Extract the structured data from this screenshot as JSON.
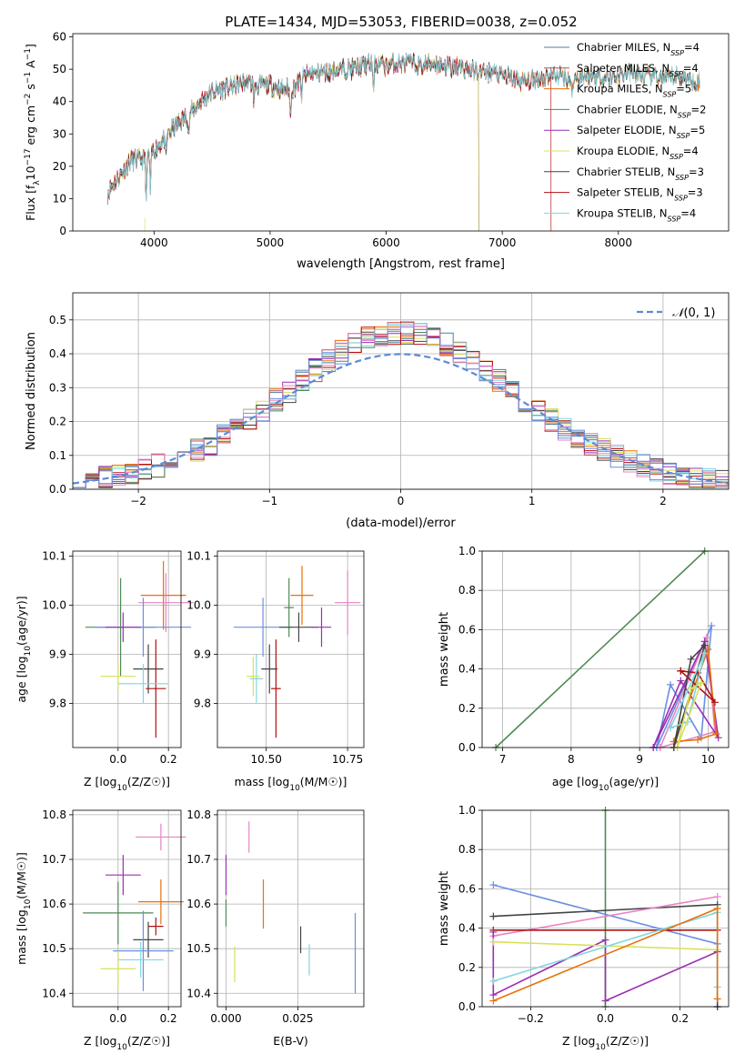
{
  "figure_title": "PLATE=1434, MJD=53053, FIBERID=0038, z=0.052",
  "colors": {
    "chabrier_miles": "#4d7fa3",
    "salpeter_miles": "#c44e52",
    "kroupa_miles": "#e8710a",
    "chabrier_elodie": "#4e8a53",
    "salpeter_elodie": "#9b2fb3",
    "kroupa_elodie": "#d8e05a",
    "chabrier_stelib": "#444444",
    "salpeter_stelib": "#b01010",
    "kroupa_stelib": "#7fd6e0",
    "normal_curve": "#5b8bd6",
    "pink": "#e884c4",
    "blue": "#6a8fe0",
    "grid": "#b0b0b0"
  },
  "chart_data": [
    {
      "id": "spectrum",
      "type": "line",
      "title": "",
      "xlabel": "wavelength [Angstrom, rest frame]",
      "ylabel": "Flux [f_λ10^-17 erg cm^-2 s^-1 A^-1]",
      "xlim": [
        3300,
        8950
      ],
      "ylim": [
        0,
        61
      ],
      "xticks": [
        4000,
        5000,
        6000,
        7000,
        8000
      ],
      "yticks": [
        0,
        10,
        20,
        30,
        40,
        50,
        60
      ],
      "grid": false,
      "legend_position": "upper right",
      "x": [
        3600,
        3700,
        3800,
        3900,
        4000,
        4100,
        4200,
        4300,
        4400,
        4500,
        4600,
        4700,
        4800,
        4900,
        5000,
        5100,
        5200,
        5300,
        5400,
        5500,
        5600,
        5700,
        5800,
        5900,
        6000,
        6100,
        6200,
        6300,
        6400,
        6500,
        6600,
        6700,
        6800,
        6900,
        7000,
        7100,
        7200,
        7300,
        7400,
        7500,
        7600,
        7700,
        7800,
        7900,
        8000,
        8100,
        8200,
        8300,
        8400,
        8500,
        8600,
        8700
      ],
      "base_flux": [
        12,
        17,
        22,
        22,
        25,
        29,
        33,
        36,
        40,
        43,
        44,
        45,
        46,
        45,
        45,
        44,
        44,
        48,
        49,
        49,
        50,
        50,
        51,
        52,
        51,
        52,
        52,
        51,
        52,
        51,
        51,
        50,
        49,
        49,
        48,
        47,
        46,
        47,
        48,
        48,
        47,
        48,
        48,
        47,
        48,
        49,
        48,
        48,
        47,
        48,
        47,
        46
      ],
      "series": [
        {
          "name": "Chabrier MILES, N_SSP=4",
          "color_key": "chabrier_miles",
          "x_end": 8700
        },
        {
          "name": "Salpeter MILES, N_SSP=4",
          "color_key": "salpeter_miles",
          "x_end": 8700
        },
        {
          "name": "Kroupa MILES, N_SSP=5",
          "color_key": "kroupa_miles",
          "x_end": 8700
        },
        {
          "name": "Chabrier ELODIE, N_SSP=2",
          "color_key": "chabrier_elodie",
          "x_end": 6800
        },
        {
          "name": "Salpeter ELODIE, N_SSP=5",
          "color_key": "salpeter_elodie",
          "x_end": 6800
        },
        {
          "name": "Kroupa ELODIE, N_SSP=4",
          "color_key": "kroupa_elodie",
          "x_end": 6800
        },
        {
          "name": "Chabrier STELIB, N_SSP=3",
          "color_key": "chabrier_stelib",
          "x_end": 8700
        },
        {
          "name": "Salpeter STELIB, N_SSP=3",
          "color_key": "salpeter_stelib",
          "x_end": 7420
        },
        {
          "name": "Kroupa STELIB, N_SSP=4",
          "color_key": "kroupa_stelib",
          "x_end": 8700
        }
      ],
      "legend": [
        {
          "text": "Chabrier MILES, N",
          "sub": "SSP",
          "tail": "=4",
          "color_key": "chabrier_miles"
        },
        {
          "text": "Salpeter MILES, N",
          "sub": "SSP",
          "tail": "=4",
          "color_key": "salpeter_miles"
        },
        {
          "text": "Kroupa MILES, N",
          "sub": "SSP",
          "tail": "=5",
          "color_key": "kroupa_miles"
        },
        {
          "text": "Chabrier ELODIE, N",
          "sub": "SSP",
          "tail": "=2",
          "color_key": "chabrier_elodie"
        },
        {
          "text": "Salpeter ELODIE, N",
          "sub": "SSP",
          "tail": "=5",
          "color_key": "salpeter_elodie"
        },
        {
          "text": "Kroupa ELODIE, N",
          "sub": "SSP",
          "tail": "=4",
          "color_key": "kroupa_elodie"
        },
        {
          "text": "Chabrier STELIB, N",
          "sub": "SSP",
          "tail": "=3",
          "color_key": "chabrier_stelib"
        },
        {
          "text": "Salpeter STELIB, N",
          "sub": "SSP",
          "tail": "=3",
          "color_key": "salpeter_stelib"
        },
        {
          "text": "Kroupa STELIB, N",
          "sub": "SSP",
          "tail": "=4",
          "color_key": "kroupa_stelib"
        }
      ]
    },
    {
      "id": "residuals",
      "type": "histogram",
      "xlabel": "(data-model)/error",
      "ylabel": "Normed distribution",
      "xlim": [
        -2.5,
        2.5
      ],
      "ylim": [
        0,
        0.58
      ],
      "xticks": [
        -2,
        -1,
        0,
        1,
        2
      ],
      "yticks": [
        0.0,
        0.1,
        0.2,
        0.3,
        0.4,
        0.5
      ],
      "grid": true,
      "legend_position": "upper right",
      "bin_width": 0.1,
      "bin_start": -2.5,
      "reference_curve": {
        "label": "N(0,1)",
        "mean": 0,
        "sigma": 1
      },
      "series_color_keys": [
        "chabrier_miles",
        "salpeter_miles",
        "kroupa_miles",
        "chabrier_elodie",
        "salpeter_elodie",
        "kroupa_elodie",
        "chabrier_stelib",
        "salpeter_stelib",
        "kroupa_stelib",
        "pink",
        "blue"
      ]
    },
    {
      "id": "age_vs_Z",
      "type": "errorbar",
      "xlabel": "Z [log10(Z/Z☉)]",
      "ylabel": "age [log10(age/yr)]",
      "xlim": [
        -0.18,
        0.25
      ],
      "ylim": [
        9.71,
        10.11
      ],
      "xticks": [
        0.0,
        0.2
      ],
      "yticks": [
        9.8,
        9.9,
        10.0,
        10.1
      ],
      "grid": true,
      "points": [
        {
          "x": 0.18,
          "y": 10.02,
          "xerr": 0.09,
          "yerr": 0.07,
          "color_key": "kroupa_miles"
        },
        {
          "x": 0.19,
          "y": 10.005,
          "xerr": 0.11,
          "yerr": 0.06,
          "color_key": "pink"
        },
        {
          "x": 0.01,
          "y": 9.955,
          "xerr": 0.14,
          "yerr": 0.1,
          "color_key": "chabrier_elodie"
        },
        {
          "x": 0.1,
          "y": 9.955,
          "xerr": 0.19,
          "yerr": 0.06,
          "color_key": "blue"
        },
        {
          "x": 0.02,
          "y": 9.955,
          "xerr": 0.07,
          "yerr": 0.03,
          "color_key": "salpeter_elodie"
        },
        {
          "x": 0.12,
          "y": 9.87,
          "xerr": 0.06,
          "yerr": 0.05,
          "color_key": "chabrier_stelib"
        },
        {
          "x": 0.15,
          "y": 9.83,
          "xerr": 0.04,
          "yerr": 0.1,
          "color_key": "salpeter_stelib"
        },
        {
          "x": 0.1,
          "y": 9.84,
          "xerr": 0.1,
          "yerr": 0.04,
          "color_key": "kroupa_stelib"
        },
        {
          "x": 0.0,
          "y": 9.855,
          "xerr": 0.07,
          "yerr": 0.03,
          "color_key": "kroupa_elodie"
        }
      ]
    },
    {
      "id": "age_vs_mass",
      "type": "errorbar",
      "xlabel": "mass [log10(M/M☉)]",
      "ylabel": "",
      "xlim": [
        10.35,
        10.8
      ],
      "ylim": [
        9.71,
        10.11
      ],
      "xticks": [
        10.5,
        10.75
      ],
      "yticks": [
        9.8,
        9.9,
        10.0,
        10.1
      ],
      "grid": true,
      "points": [
        {
          "x": 10.61,
          "y": 10.02,
          "xerr": 0.035,
          "yerr": 0.06,
          "color_key": "kroupa_miles"
        },
        {
          "x": 10.75,
          "y": 10.005,
          "xerr": 0.04,
          "yerr": 0.065,
          "color_key": "pink"
        },
        {
          "x": 10.57,
          "y": 9.995,
          "xerr": 0.015,
          "yerr": 0.06,
          "color_key": "chabrier_elodie"
        },
        {
          "x": 10.49,
          "y": 9.955,
          "xerr": 0.09,
          "yerr": 0.06,
          "color_key": "blue"
        },
        {
          "x": 10.6,
          "y": 9.955,
          "xerr": 0.06,
          "yerr": 0.03,
          "color_key": "chabrier_stelib"
        },
        {
          "x": 10.67,
          "y": 9.955,
          "xerr": 0.03,
          "yerr": 0.04,
          "color_key": "salpeter_elodie"
        },
        {
          "x": 10.51,
          "y": 9.87,
          "xerr": 0.025,
          "yerr": 0.05,
          "color_key": "chabrier_stelib"
        },
        {
          "x": 10.53,
          "y": 9.83,
          "xerr": 0.015,
          "yerr": 0.1,
          "color_key": "salpeter_stelib"
        },
        {
          "x": 10.47,
          "y": 9.85,
          "xerr": 0.02,
          "yerr": 0.05,
          "color_key": "kroupa_stelib"
        },
        {
          "x": 10.46,
          "y": 9.855,
          "xerr": 0.02,
          "yerr": 0.04,
          "color_key": "kroupa_elodie"
        }
      ]
    },
    {
      "id": "massweight_vs_age",
      "type": "line",
      "xlabel": "age [log10(age/yr)]",
      "ylabel": "mass weight",
      "xlim": [
        6.7,
        10.3
      ],
      "ylim": [
        0,
        1.0
      ],
      "xticks": [
        7,
        8,
        9,
        10
      ],
      "yticks": [
        0.0,
        0.2,
        0.4,
        0.6,
        0.8,
        1.0
      ],
      "grid": true,
      "series": [
        {
          "color_key": "chabrier_elodie",
          "x": [
            6.9,
            9.95
          ],
          "y": [
            0.0,
            1.0
          ]
        },
        {
          "color_key": "blue",
          "x": [
            9.25,
            10.05,
            9.9,
            9.45,
            9.25
          ],
          "y": [
            0.0,
            0.62,
            0.05,
            0.32,
            0.0
          ]
        },
        {
          "color_key": "pink",
          "x": [
            9.3,
            9.98,
            10.1,
            9.3
          ],
          "y": [
            0.0,
            0.56,
            0.08,
            0.0
          ]
        },
        {
          "color_key": "salpeter_elodie",
          "x": [
            9.2,
            9.95,
            10.15,
            9.6,
            9.2
          ],
          "y": [
            0.0,
            0.54,
            0.05,
            0.34,
            0.0
          ]
        },
        {
          "color_key": "kroupa_miles",
          "x": [
            9.5,
            10.0,
            10.12,
            9.85,
            9.5
          ],
          "y": [
            0.03,
            0.5,
            0.07,
            0.04,
            0.03
          ]
        },
        {
          "color_key": "salpeter_stelib",
          "x": [
            9.6,
            9.85,
            10.1,
            9.6
          ],
          "y": [
            0.39,
            0.38,
            0.23,
            0.39
          ]
        },
        {
          "color_key": "chabrier_stelib",
          "x": [
            9.5,
            9.95,
            9.75,
            9.5
          ],
          "y": [
            0.0,
            0.52,
            0.45,
            0.0
          ]
        },
        {
          "color_key": "kroupa_stelib",
          "x": [
            9.45,
            9.95,
            9.7,
            9.45
          ],
          "y": [
            0.1,
            0.48,
            0.13,
            0.1
          ]
        },
        {
          "color_key": "kroupa_elodie",
          "x": [
            9.55,
            9.75,
            9.9,
            9.55
          ],
          "y": [
            0.0,
            0.3,
            0.33,
            0.0
          ]
        }
      ]
    },
    {
      "id": "mass_vs_Z",
      "type": "errorbar",
      "xlabel": "Z [log10(Z/Z☉)]",
      "ylabel": "mass [log10(M/M☉)]",
      "xlim": [
        -0.18,
        0.25
      ],
      "ylim": [
        10.37,
        10.81
      ],
      "xticks": [
        0.0,
        0.2
      ],
      "yticks": [
        10.4,
        10.5,
        10.6,
        10.7,
        10.8
      ],
      "grid": true,
      "points": [
        {
          "x": 0.17,
          "y": 10.75,
          "xerr": 0.1,
          "yerr": 0.03,
          "color_key": "pink"
        },
        {
          "x": 0.02,
          "y": 10.665,
          "xerr": 0.07,
          "yerr": 0.045,
          "color_key": "salpeter_elodie"
        },
        {
          "x": 0.17,
          "y": 10.605,
          "xerr": 0.09,
          "yerr": 0.05,
          "color_key": "kroupa_miles"
        },
        {
          "x": 0.0,
          "y": 10.58,
          "xerr": 0.14,
          "yerr": 0.07,
          "color_key": "chabrier_elodie"
        },
        {
          "x": 0.15,
          "y": 10.55,
          "xerr": 0.03,
          "yerr": 0.02,
          "color_key": "salpeter_stelib"
        },
        {
          "x": 0.12,
          "y": 10.52,
          "xerr": 0.06,
          "yerr": 0.04,
          "color_key": "chabrier_stelib"
        },
        {
          "x": 0.1,
          "y": 10.495,
          "xerr": 0.12,
          "yerr": 0.09,
          "color_key": "blue"
        },
        {
          "x": 0.09,
          "y": 10.475,
          "xerr": 0.09,
          "yerr": 0.04,
          "color_key": "kroupa_stelib"
        },
        {
          "x": 0.0,
          "y": 10.455,
          "xerr": 0.07,
          "yerr": 0.04,
          "color_key": "kroupa_elodie"
        }
      ]
    },
    {
      "id": "mass_vs_ebv",
      "type": "errorbar",
      "xlabel": "E(B-V)",
      "ylabel": "",
      "xlim": [
        -0.003,
        0.048
      ],
      "ylim": [
        10.37,
        10.81
      ],
      "xticks": [
        0.0,
        0.025
      ],
      "xtick_labels": [
        "0.000",
        "0.025"
      ],
      "yticks": [
        10.4,
        10.5,
        10.6,
        10.7,
        10.8
      ],
      "grid": true,
      "points": [
        {
          "x": 0.008,
          "y": 10.75,
          "xerr": 0,
          "yerr": 0.035,
          "color_key": "pink"
        },
        {
          "x": 0.0,
          "y": 10.665,
          "xerr": 0,
          "yerr": 0.045,
          "color_key": "salpeter_elodie"
        },
        {
          "x": 0.013,
          "y": 10.6,
          "xerr": 0,
          "yerr": 0.055,
          "color_key": "kroupa_miles"
        },
        {
          "x": 0.0,
          "y": 10.58,
          "xerr": 0,
          "yerr": 0.03,
          "color_key": "chabrier_elodie"
        },
        {
          "x": 0.026,
          "y": 10.52,
          "xerr": 0,
          "yerr": 0.03,
          "color_key": "chabrier_stelib"
        },
        {
          "x": 0.045,
          "y": 10.49,
          "xerr": 0,
          "yerr": 0.09,
          "color_key": "blue"
        },
        {
          "x": 0.029,
          "y": 10.475,
          "xerr": 0,
          "yerr": 0.035,
          "color_key": "kroupa_stelib"
        },
        {
          "x": 0.003,
          "y": 10.465,
          "xerr": 0,
          "yerr": 0.04,
          "color_key": "kroupa_elodie"
        }
      ]
    },
    {
      "id": "massweight_vs_Z",
      "type": "line",
      "xlabel": "Z [log10(Z/Z☉)]",
      "ylabel": "mass weight",
      "xlim": [
        -0.33,
        0.33
      ],
      "ylim": [
        0,
        1.0
      ],
      "xticks": [
        -0.2,
        0.0,
        0.2
      ],
      "yticks": [
        0.0,
        0.2,
        0.4,
        0.6,
        0.8,
        1.0
      ],
      "grid": true,
      "series": [
        {
          "color_key": "chabrier_elodie",
          "x": [
            0.0,
            0.0
          ],
          "y": [
            0.0,
            1.0
          ]
        },
        {
          "color_key": "blue",
          "x": [
            -0.3,
            0.3,
            0.3
          ],
          "y": [
            0.62,
            0.32,
            0.0
          ]
        },
        {
          "color_key": "chabrier_stelib",
          "x": [
            -0.3,
            0.3,
            0.3
          ],
          "y": [
            0.46,
            0.52,
            0.0
          ]
        },
        {
          "color_key": "pink",
          "x": [
            -0.3,
            0.3
          ],
          "y": [
            0.36,
            0.56
          ]
        },
        {
          "color_key": "salpeter_stelib",
          "x": [
            -0.3,
            0.3
          ],
          "y": [
            0.39,
            0.39
          ]
        },
        {
          "color_key": "salpeter_elodie",
          "x": [
            -0.3,
            -0.3,
            0.0,
            0.0,
            0.3
          ],
          "y": [
            0.38,
            0.06,
            0.34,
            0.03,
            0.28
          ]
        },
        {
          "color_key": "kroupa_elodie",
          "x": [
            -0.3,
            0.3
          ],
          "y": [
            0.33,
            0.29
          ]
        },
        {
          "color_key": "kroupa_stelib",
          "x": [
            -0.3,
            0.3,
            0.3
          ],
          "y": [
            0.13,
            0.48,
            0.1
          ]
        },
        {
          "color_key": "kroupa_miles",
          "x": [
            -0.3,
            0.3,
            0.3
          ],
          "y": [
            0.03,
            0.5,
            0.04
          ]
        }
      ]
    }
  ]
}
